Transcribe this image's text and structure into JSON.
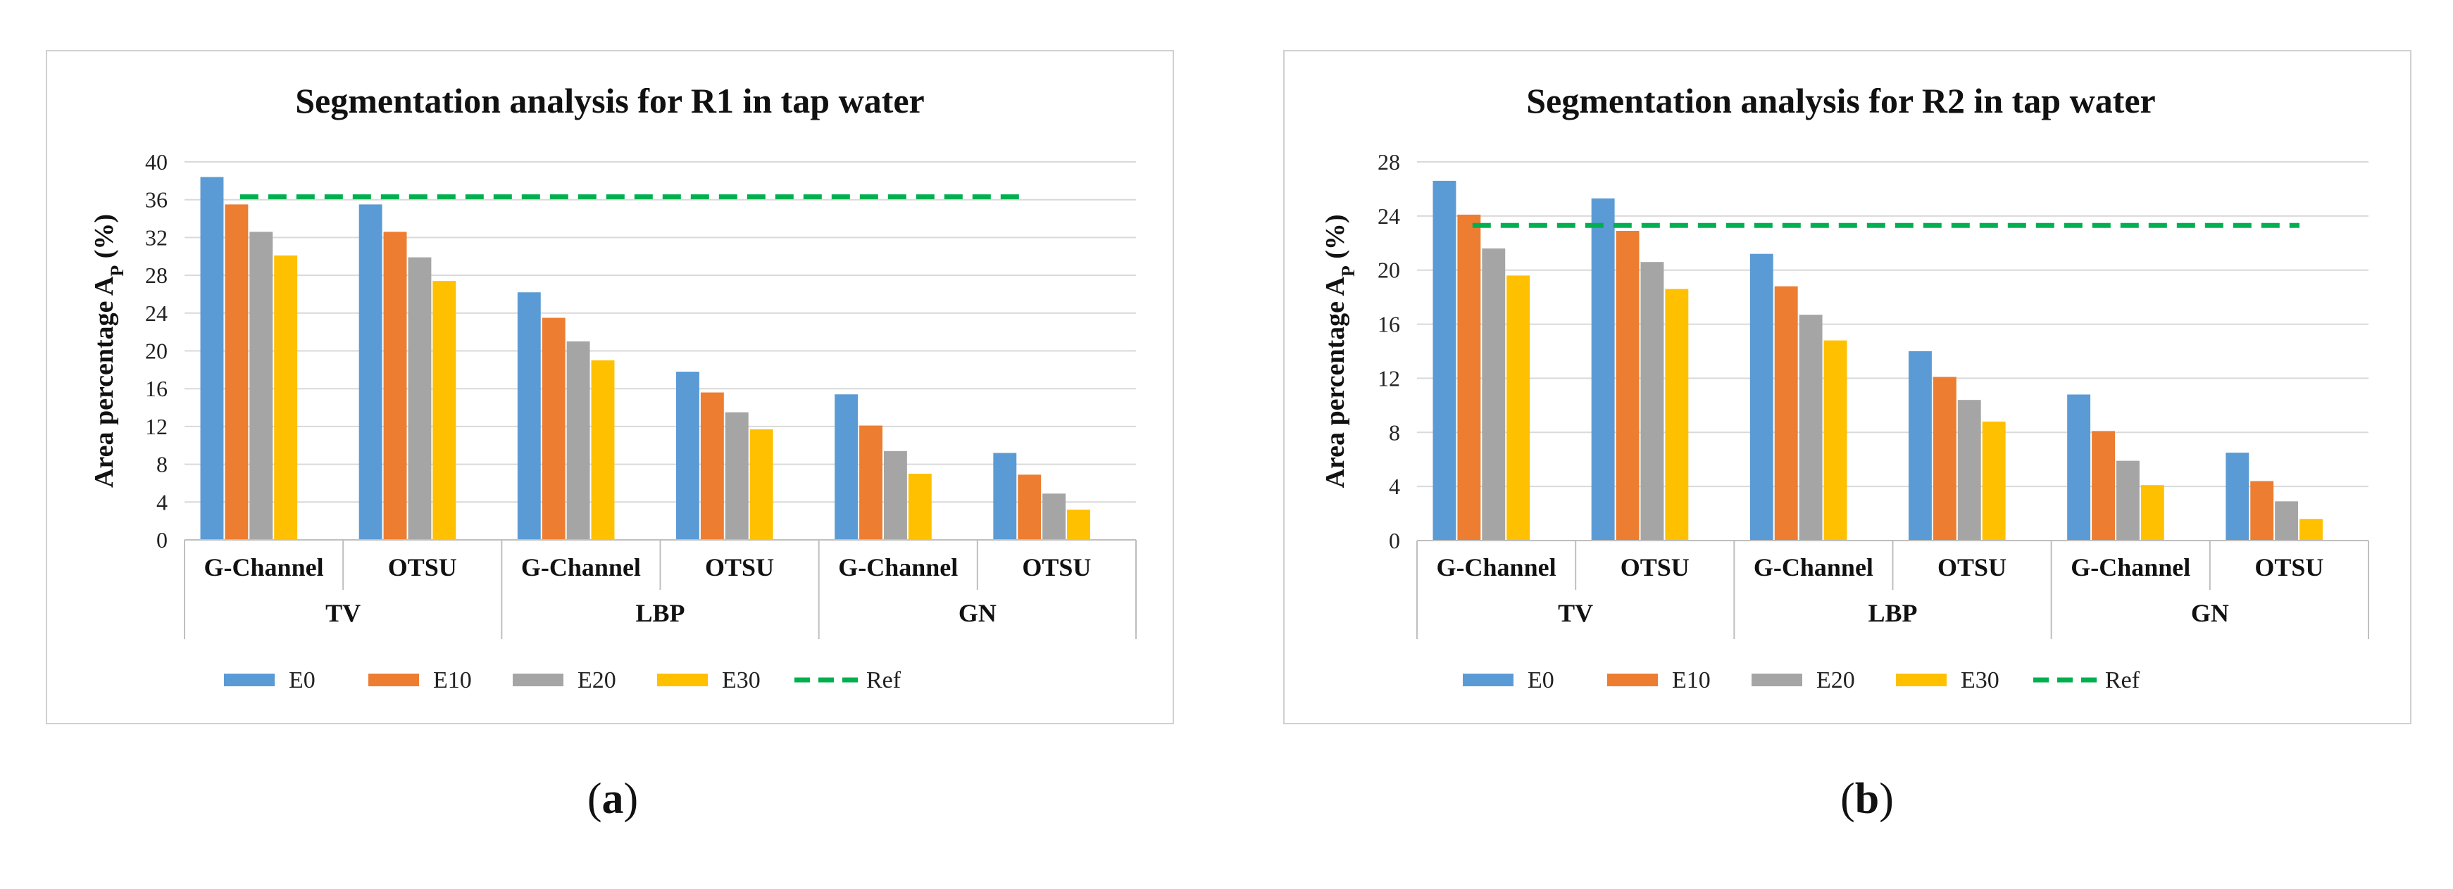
{
  "colors": {
    "E0": "#5B9BD5",
    "E10": "#ED7D31",
    "E20": "#A5A5A5",
    "E30": "#FFC000",
    "Ref": "#00B050",
    "grid": "#D9D9D9",
    "frame": "#D0D0D0"
  },
  "chart_data": [
    {
      "type": "bar",
      "title": "Segmentation analysis  for R1 in tap water",
      "ylabel": "Area percentage A",
      "ylabel_sub": "P",
      "ylabel_suffix": " (%)",
      "ylim": [
        0,
        40
      ],
      "yticks": [
        0,
        4,
        8,
        12,
        16,
        20,
        24,
        28,
        32,
        36,
        40
      ],
      "grid": true,
      "legend_position": "bottom",
      "groups": [
        "TV",
        "LBP",
        "GN"
      ],
      "categories": [
        "G-Channel",
        "OTSU",
        "G-Channel",
        "OTSU",
        "G-Channel",
        "OTSU"
      ],
      "series": [
        {
          "name": "E0",
          "values": [
            38.4,
            35.5,
            26.2,
            17.8,
            15.4,
            9.2
          ]
        },
        {
          "name": "E10",
          "values": [
            35.5,
            32.6,
            23.5,
            15.6,
            12.1,
            6.9
          ]
        },
        {
          "name": "E20",
          "values": [
            32.6,
            29.9,
            21.0,
            13.5,
            9.4,
            4.9
          ]
        },
        {
          "name": "E30",
          "values": [
            30.1,
            27.4,
            19.0,
            11.7,
            7.0,
            3.2
          ]
        }
      ],
      "reference": {
        "name": "Ref",
        "value": 36.3
      },
      "caption": "a"
    },
    {
      "type": "bar",
      "title": "Segmentation analysis  for R2 in tap water",
      "ylabel": "Area percentage A",
      "ylabel_sub": "P",
      "ylabel_suffix": " (%)",
      "ylim": [
        0,
        28
      ],
      "yticks": [
        0,
        4,
        8,
        12,
        16,
        20,
        24,
        28
      ],
      "grid": true,
      "legend_position": "bottom",
      "groups": [
        "TV",
        "LBP",
        "GN"
      ],
      "categories": [
        "G-Channel",
        "OTSU",
        "G-Channel",
        "OTSU",
        "G-Channel",
        "OTSU"
      ],
      "series": [
        {
          "name": "E0",
          "values": [
            26.6,
            25.3,
            21.2,
            14.0,
            10.8,
            6.5
          ]
        },
        {
          "name": "E10",
          "values": [
            24.1,
            22.9,
            18.8,
            12.1,
            8.1,
            4.4
          ]
        },
        {
          "name": "E20",
          "values": [
            21.6,
            20.6,
            16.7,
            10.4,
            5.9,
            2.9
          ]
        },
        {
          "name": "E30",
          "values": [
            19.6,
            18.6,
            14.8,
            8.8,
            4.1,
            1.6
          ]
        }
      ],
      "reference": {
        "name": "Ref",
        "value": 23.3
      },
      "caption": "b"
    }
  ]
}
